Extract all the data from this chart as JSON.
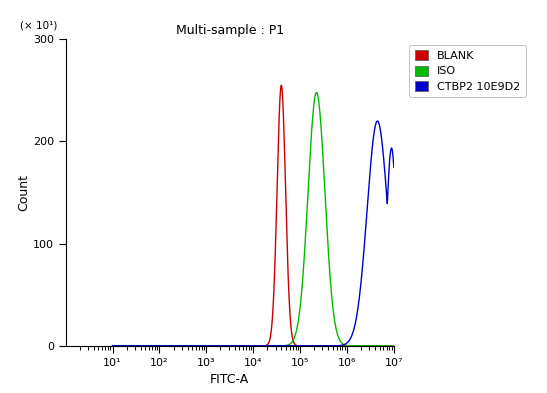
{
  "title": "Multi-sample : P1",
  "xlabel": "FITC-A",
  "ylabel": "Count",
  "ylabel_multiplier": "(× 10¹)",
  "xlim": [
    1,
    10000000.0
  ],
  "ylim": [
    0,
    300
  ],
  "yticks": [
    0,
    100,
    200,
    300
  ],
  "xticks_log": [
    10,
    100,
    1000,
    10000,
    100000,
    1000000,
    10000000
  ],
  "xtick_labels": [
    "10¹",
    "10²",
    "10³",
    "10⁴",
    "10⁵",
    "10⁶",
    "10⁷"
  ],
  "legend": [
    "BLANK",
    "ISO",
    "CTBP2 10E9D2"
  ],
  "legend_colors": [
    "#cc0000",
    "#00bb00",
    "#0000cc"
  ],
  "curves": {
    "blank": {
      "color": "#cc0000",
      "peak_x_log": 4.6,
      "peak_y": 255,
      "sigma_log": 0.09
    },
    "iso": {
      "color": "#00bb00",
      "peak_x_log": 5.35,
      "peak_y": 248,
      "sigma_log": 0.18
    },
    "ctbp2": {
      "color": "#0000cc",
      "peak_x_log": 6.65,
      "peak_y": 220,
      "sigma_log": 0.22
    }
  },
  "bg_color": "#f0f0f0",
  "figsize": [
    5.47,
    3.93
  ],
  "dpi": 100
}
